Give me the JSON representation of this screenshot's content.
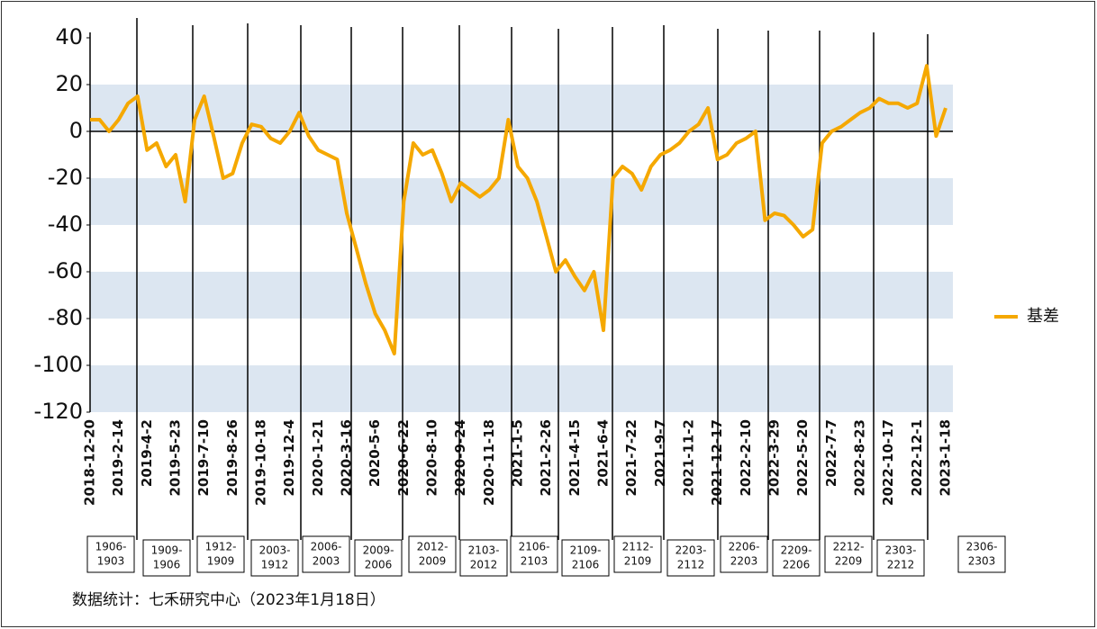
{
  "chart_data": {
    "type": "line",
    "x": [
      "2018-12-20",
      null,
      null,
      "2019-2-14",
      null,
      null,
      "2019-4-2",
      null,
      null,
      "2019-5-23",
      null,
      null,
      "2019-7-10",
      null,
      null,
      "2019-8-26",
      null,
      null,
      "2019-10-18",
      null,
      null,
      "2019-12-4",
      null,
      null,
      "2020-1-21",
      null,
      null,
      "2020-3-16",
      null,
      null,
      "2020-5-6",
      null,
      null,
      "2020-6-22",
      null,
      null,
      "2020-8-10",
      null,
      null,
      "2020-9-24",
      null,
      null,
      "2020-11-18",
      null,
      null,
      "2021-1-5",
      null,
      null,
      "2021-2-26",
      null,
      null,
      "2021-4-15",
      null,
      null,
      "2021-6-4",
      null,
      null,
      "2021-7-22",
      null,
      null,
      "2021-9-7",
      null,
      null,
      "2021-11-2",
      null,
      null,
      "2021-12-17",
      null,
      null,
      "2022-2-10",
      null,
      null,
      "2022-3-29",
      null,
      null,
      "2022-5-20",
      null,
      null,
      "2022-7-7",
      null,
      null,
      "2022-8-23",
      null,
      null,
      "2022-10-17",
      null,
      null,
      "2022-12-1",
      null,
      null,
      "2023-1-18"
    ],
    "series": [
      {
        "name": "基差",
        "color": "#f5a800",
        "values": [
          5,
          5,
          0,
          5,
          12,
          15,
          -8,
          -5,
          -15,
          -10,
          -30,
          5,
          15,
          -2,
          -20,
          -18,
          -5,
          3,
          2,
          -3,
          -5,
          0,
          8,
          -2,
          -8,
          -10,
          -12,
          -35,
          -50,
          -65,
          -78,
          -85,
          -95,
          -30,
          -5,
          -10,
          -8,
          -18,
          -30,
          -22,
          -25,
          -28,
          -25,
          -20,
          5,
          -15,
          -20,
          -30,
          -45,
          -60,
          -55,
          -62,
          -68,
          -60,
          -85,
          -20,
          -15,
          -18,
          -25,
          -15,
          -10,
          -8,
          -5,
          0,
          3,
          10,
          -12,
          -10,
          -5,
          -3,
          0,
          -38,
          -35,
          -36,
          -40,
          -45,
          -42,
          -5,
          0,
          2,
          5,
          8,
          10,
          14,
          12,
          12,
          10,
          12,
          28,
          -2,
          10
        ]
      }
    ],
    "ylim": [
      -120,
      40
    ],
    "yticks": [
      -120,
      -100,
      -80,
      -60,
      -40,
      -20,
      0,
      20,
      40
    ],
    "grid": "bands",
    "legend": "right",
    "annotations": [
      [
        "1906-",
        "1903"
      ],
      [
        "1909-",
        "1906"
      ],
      [
        "1912-",
        "1909"
      ],
      [
        "2003-",
        "1912"
      ],
      [
        "2006-",
        "2003"
      ],
      [
        "2009-",
        "2006"
      ],
      [
        "2012-",
        "2009"
      ],
      [
        "2103-",
        "2012"
      ],
      [
        "2106-",
        "2103"
      ],
      [
        "2109-",
        "2106"
      ],
      [
        "2112-",
        "2109"
      ],
      [
        "2203-",
        "2112"
      ],
      [
        "2206-",
        "2203"
      ],
      [
        "2209-",
        "2206"
      ],
      [
        "2212-",
        "2209"
      ],
      [
        "2303-",
        "2212"
      ],
      [
        "2306-",
        "2303"
      ]
    ],
    "source": "数据统计：七禾研究中心（2023年1月18日）"
  }
}
